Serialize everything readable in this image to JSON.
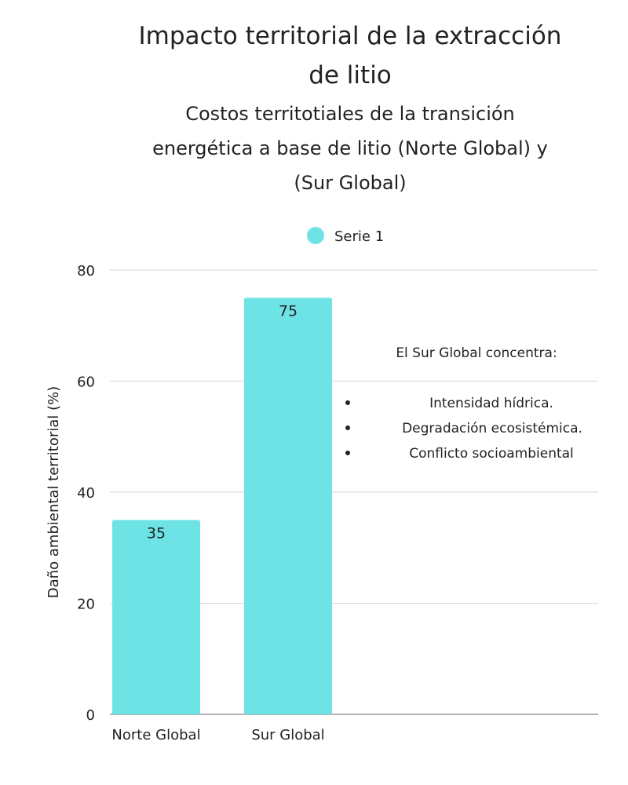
{
  "chart_data": {
    "type": "bar",
    "title_lines": [
      "Impacto territorial de la extracción",
      "de litio"
    ],
    "subtitle_lines": [
      "Costos territotiales de la transición",
      "energética a base de litio (Norte Global) y",
      "(Sur Global)"
    ],
    "categories": [
      "Norte Global",
      "Sur Global"
    ],
    "series": [
      {
        "name": "Serie 1",
        "values": [
          35,
          75
        ],
        "color": "#6ee3e6"
      }
    ],
    "xlabel": "",
    "ylabel": "Daño ambiental territorial (%)",
    "ylim": [
      0,
      80
    ],
    "yticks": [
      0,
      20,
      40,
      60,
      80
    ],
    "grid": true,
    "legend_position": "top-center",
    "annotation": {
      "heading": "El Sur Global concentra:",
      "bullets": [
        "Intensidad hídrica.",
        "Degradación ecosistémica.",
        "Conflicto socioambiental"
      ]
    }
  }
}
